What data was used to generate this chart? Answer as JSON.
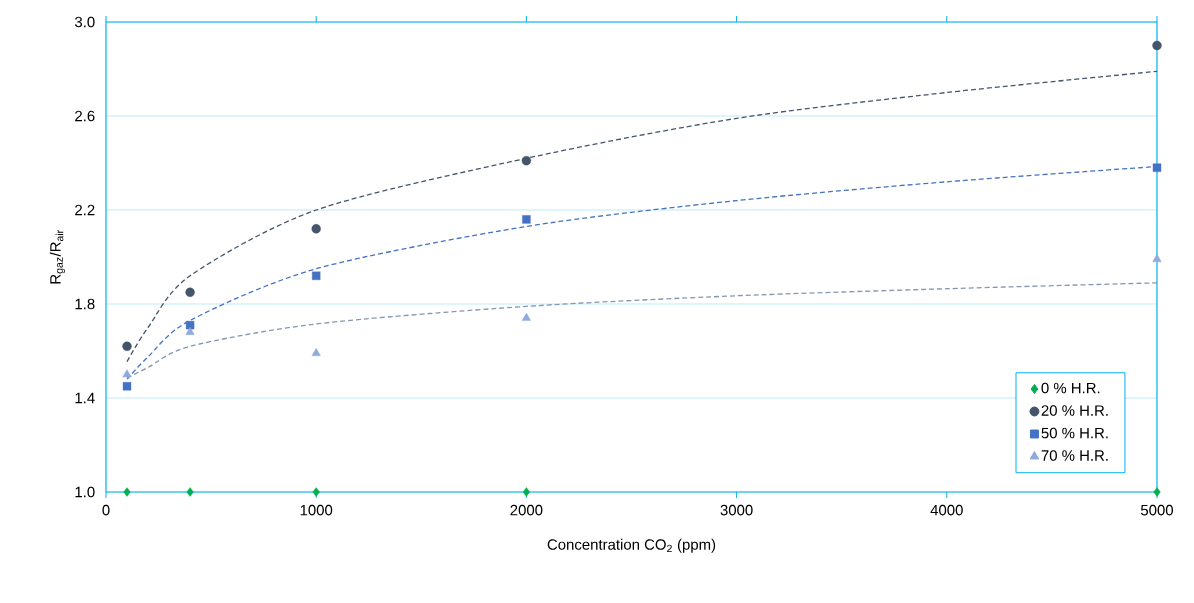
{
  "chart_data": {
    "type": "scatter",
    "xlabel": "Concentration CO$_{2}$ (ppm)",
    "ylabel": "R$_{gaz}$/R$_{air}$",
    "x": [
      100,
      400,
      1000,
      2000,
      5000
    ],
    "series": [
      {
        "name": "0 % H.R.",
        "color": "#00b050",
        "marker": "diamond",
        "values": [
          1.0,
          1.0,
          1.0,
          1.0,
          1.0
        ]
      },
      {
        "name": "20 % H.R.",
        "color": "#44546a",
        "marker": "circle",
        "values": [
          1.62,
          1.85,
          2.12,
          2.41,
          2.9
        ]
      },
      {
        "name": "50 % H.R.",
        "color": "#4472c4",
        "marker": "square",
        "values": [
          1.45,
          1.71,
          1.92,
          2.16,
          2.38
        ]
      },
      {
        "name": "70 % H.R.",
        "color": "#8faadc",
        "marker": "triangle",
        "values": [
          1.5,
          1.68,
          1.59,
          1.74,
          1.99
        ]
      },
      {
        "type": "line",
        "color": "#44546a",
        "line_style": "dashed",
        "marker": "none",
        "x": [
          100,
          200,
          400,
          1000,
          2000,
          3000,
          4000,
          5000
        ],
        "values": [
          1.555,
          1.7,
          1.92,
          2.2,
          2.42,
          2.59,
          2.7,
          2.79
        ]
      },
      {
        "type": "line",
        "color": "#4472c4",
        "line_style": "dashed",
        "marker": "none",
        "x": [
          100,
          200,
          400,
          1000,
          2000,
          3000,
          4000,
          5000
        ],
        "values": [
          1.48,
          1.575,
          1.73,
          1.95,
          2.13,
          2.24,
          2.32,
          2.385
        ]
      },
      {
        "type": "line",
        "color": "#8497b0",
        "line_style": "dashed",
        "marker": "none",
        "x": [
          100,
          200,
          400,
          1000,
          2000,
          3000,
          4000,
          5000
        ],
        "values": [
          1.485,
          1.53,
          1.62,
          1.715,
          1.79,
          1.835,
          1.865,
          1.89
        ]
      }
    ],
    "xlim": [
      0,
      5000
    ],
    "xticks": [
      0,
      1000,
      2000,
      3000,
      4000,
      5000
    ],
    "ylim": [
      1.0,
      3.0
    ],
    "yticks": [
      {
        "value": 1.0,
        "label": "1.0"
      },
      1.4,
      1.8,
      2.2,
      2.6,
      {
        "value": 3.0,
        "label": "3.0"
      }
    ],
    "grid": "y",
    "legend": "bottom right"
  }
}
